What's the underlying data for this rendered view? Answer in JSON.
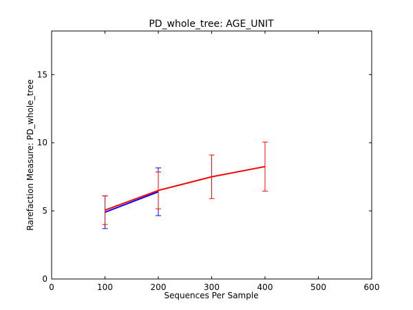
{
  "chart_data": {
    "type": "line",
    "title": "PD_whole_tree: AGE_UNIT",
    "xlabel": "Sequences Per Sample",
    "ylabel": "Rarefaction Measure: PD_whole_tree",
    "xlim": [
      0,
      600
    ],
    "ylim": [
      0,
      18.2
    ],
    "xticks": [
      "0",
      "100",
      "200",
      "300",
      "400",
      "500",
      "600"
    ],
    "yticks": [
      "0",
      "5",
      "10",
      "15"
    ],
    "grid": false,
    "series": [
      {
        "color": "#0000ff",
        "points": [
          {
            "x": 100,
            "y": 4.9,
            "err": 1.2
          },
          {
            "x": 200,
            "y": 6.4,
            "err": 1.75
          }
        ]
      },
      {
        "color": "#ff0000",
        "points": [
          {
            "x": 100,
            "y": 5.05,
            "err": 1.05
          },
          {
            "x": 200,
            "y": 6.5,
            "err": 1.35
          },
          {
            "x": 300,
            "y": 7.5,
            "err": 1.6
          },
          {
            "x": 400,
            "y": 8.25,
            "err": 1.8
          }
        ]
      }
    ]
  }
}
